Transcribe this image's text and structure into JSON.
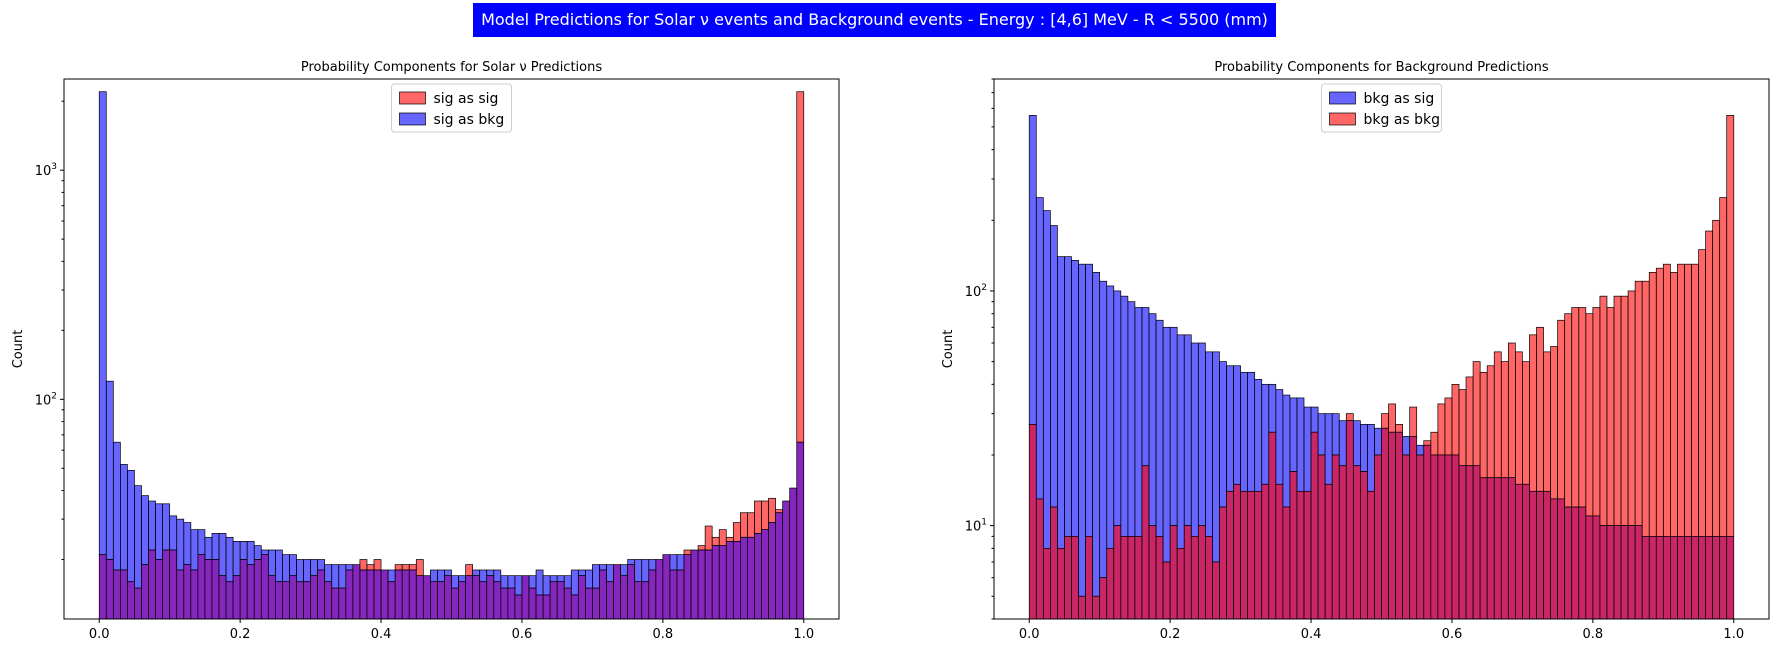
{
  "suptitle": "Model Predictions for Solar ν events and Background events - Energy : [4,6] MeV - R < 5500 (mm)",
  "colors": {
    "red": "#ff0000",
    "blue": "#0000ff",
    "overlap": "#7000b0",
    "overlap_bkg": "#c0004a"
  },
  "chart_data": [
    {
      "type": "bar",
      "subtype": "overlaid histogram",
      "title": "Probability Components for Solar ν Predictions",
      "xlabel": "",
      "ylabel": "Count",
      "yscale": "log",
      "xlim": [
        -0.05,
        1.05
      ],
      "ylim": [
        11,
        2500
      ],
      "xticks": [
        "0.0",
        "0.2",
        "0.4",
        "0.6",
        "0.8",
        "1.0"
      ],
      "yticks": [
        {
          "value": 100,
          "label": "10^2"
        },
        {
          "value": 1000,
          "label": "10^3"
        }
      ],
      "legend_position": "top-center",
      "bins": 100,
      "series": [
        {
          "name": "sig as sig",
          "color": "#ff0000",
          "values": [
            21,
            20,
            18,
            18,
            16,
            15,
            19,
            22,
            20,
            22,
            22,
            18,
            19,
            18,
            21,
            20,
            20,
            17,
            16,
            17,
            20,
            19,
            20,
            21,
            17,
            16,
            16,
            17,
            16,
            16,
            17,
            18,
            16,
            15,
            15,
            18,
            19,
            20,
            19,
            20,
            18,
            16,
            19,
            19,
            19,
            20,
            17,
            16,
            16,
            17,
            15,
            16,
            19,
            17,
            16,
            17,
            16,
            15,
            15,
            14,
            17,
            15,
            14,
            14,
            16,
            16,
            15,
            14,
            17,
            15,
            15,
            18,
            16,
            19,
            17,
            19,
            16,
            16,
            18,
            20,
            21,
            18,
            18,
            22,
            22,
            23,
            28,
            25,
            27,
            25,
            29,
            32,
            32,
            36,
            36,
            37,
            33,
            36,
            41,
            2200
          ]
        },
        {
          "name": "sig as bkg",
          "color": "#0000ff",
          "values": [
            2200,
            120,
            65,
            52,
            49,
            42,
            38,
            36,
            35,
            35,
            31,
            30,
            29,
            27,
            27,
            25,
            26,
            26,
            25,
            24,
            24,
            24,
            23,
            22,
            22,
            22,
            21,
            21,
            20,
            20,
            20,
            20,
            19,
            19,
            19,
            19,
            19,
            18,
            18,
            18,
            18,
            18,
            18,
            18,
            18,
            17,
            17,
            18,
            18,
            18,
            17,
            17,
            17,
            18,
            18,
            18,
            18,
            17,
            17,
            17,
            17,
            17,
            18,
            17,
            17,
            17,
            17,
            18,
            18,
            18,
            19,
            19,
            19,
            19,
            19,
            20,
            20,
            20,
            20,
            20,
            21,
            21,
            21,
            21,
            22,
            22,
            22,
            23,
            23,
            24,
            24,
            25,
            25,
            26,
            27,
            29,
            32,
            36,
            41,
            65
          ]
        }
      ]
    },
    {
      "type": "bar",
      "subtype": "overlaid histogram",
      "title": "Probability Components for Background Predictions",
      "xlabel": "",
      "ylabel": "Count",
      "yscale": "log",
      "xlim": [
        -0.05,
        1.05
      ],
      "ylim": [
        4,
        800
      ],
      "xticks": [
        "0.0",
        "0.2",
        "0.4",
        "0.6",
        "0.8",
        "1.0"
      ],
      "yticks": [
        {
          "value": 10,
          "label": "10^1"
        },
        {
          "value": 100,
          "label": "10^2"
        }
      ],
      "legend_position": "top-center",
      "bins": 100,
      "series": [
        {
          "name": "bkg as sig",
          "color": "#0000ff",
          "values": [
            560,
            250,
            220,
            190,
            140,
            140,
            135,
            130,
            130,
            120,
            110,
            105,
            100,
            95,
            90,
            85,
            85,
            80,
            75,
            70,
            70,
            65,
            65,
            60,
            60,
            55,
            55,
            50,
            48,
            48,
            45,
            45,
            42,
            40,
            40,
            38,
            36,
            35,
            35,
            32,
            32,
            30,
            30,
            30,
            28,
            28,
            28,
            27,
            27,
            26,
            26,
            25,
            25,
            24,
            24,
            22,
            22,
            20,
            20,
            20,
            20,
            18,
            18,
            18,
            16,
            16,
            16,
            16,
            16,
            15,
            15,
            14,
            14,
            14,
            13,
            13,
            12,
            12,
            12,
            11,
            11,
            10,
            10,
            10,
            10,
            10,
            10,
            9,
            9,
            9,
            9,
            9,
            9,
            9,
            9,
            9,
            9,
            9,
            9,
            9
          ]
        },
        {
          "name": "bkg as bkg",
          "color": "#ff0000",
          "values": [
            27,
            13,
            8,
            12,
            8,
            9,
            9,
            5,
            9,
            5,
            6,
            8,
            10,
            9,
            9,
            9,
            18,
            10,
            9,
            7,
            10,
            8,
            10,
            9,
            10,
            9,
            7,
            12,
            14,
            15,
            14,
            14,
            14,
            15,
            25,
            15,
            12,
            17,
            14,
            14,
            25,
            20,
            15,
            20,
            18,
            30,
            18,
            17,
            14,
            20,
            30,
            33,
            27,
            20,
            32,
            20,
            23,
            25,
            33,
            35,
            40,
            38,
            43,
            50,
            45,
            48,
            55,
            50,
            60,
            55,
            50,
            65,
            70,
            55,
            58,
            75,
            80,
            85,
            85,
            80,
            85,
            95,
            85,
            95,
            95,
            100,
            110,
            110,
            120,
            125,
            130,
            120,
            130,
            130,
            130,
            150,
            180,
            200,
            250,
            560
          ]
        }
      ]
    }
  ]
}
